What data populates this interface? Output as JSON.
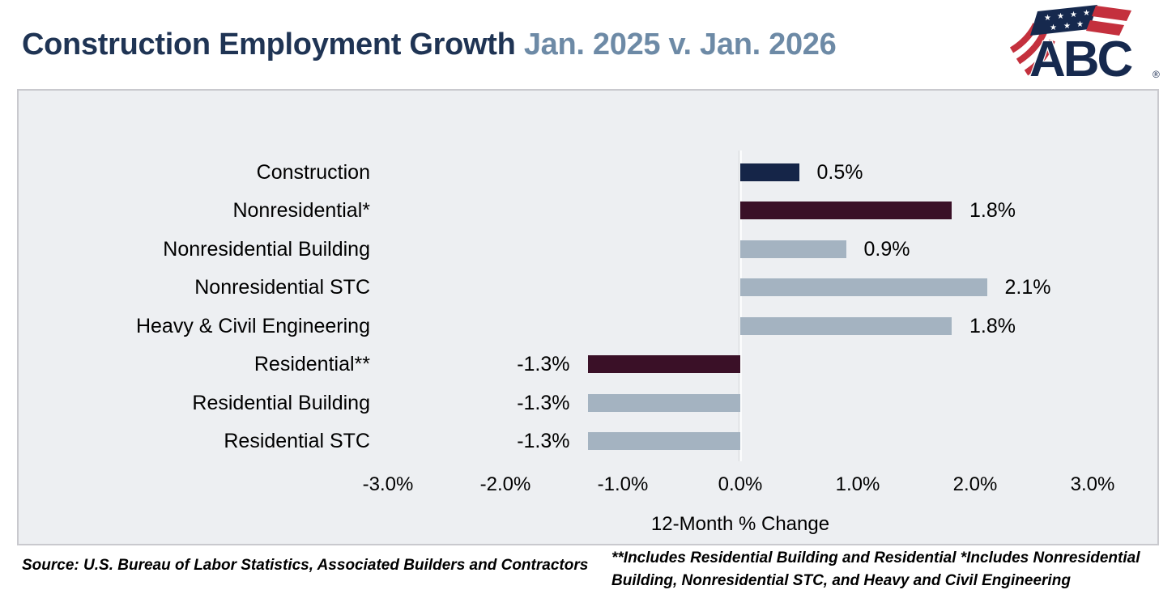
{
  "header": {
    "title_main": "Construction Employment Growth",
    "title_accent": "Jan. 2025 v. Jan. 2026",
    "logo": {
      "text": "ABC",
      "registered": "®",
      "navy": "#16294e",
      "red": "#c4303d"
    }
  },
  "chart_data": {
    "type": "bar",
    "orientation": "horizontal",
    "categories": [
      "Construction",
      "Nonresidential*",
      "Nonresidential Building",
      "Nonresidential STC",
      "Heavy & Civil Engineering",
      "Residential**",
      "Residential Building",
      "Residential STC"
    ],
    "values": [
      0.5,
      1.8,
      0.9,
      2.1,
      1.8,
      -1.3,
      -1.3,
      -1.3
    ],
    "value_labels": [
      "0.5%",
      "1.8%",
      "0.9%",
      "2.1%",
      "1.8%",
      "-1.3%",
      "-1.3%",
      "-1.3%"
    ],
    "bar_colors": [
      "#152548",
      "#3a1027",
      "#a4b3c1",
      "#a4b3c1",
      "#a4b3c1",
      "#3a1027",
      "#a4b3c1",
      "#a4b3c1"
    ],
    "xlabel": "12-Month % Change",
    "x_ticks": [
      "-3.0%",
      "-2.0%",
      "-1.0%",
      "0.0%",
      "1.0%",
      "2.0%",
      "3.0%"
    ],
    "x_tick_values": [
      -3,
      -2,
      -1,
      0,
      1,
      2,
      3
    ],
    "xlim": [
      -3,
      3
    ],
    "grid": false,
    "legend": "none",
    "plot_bg": "#edeff2",
    "zero_axis_line": true
  },
  "colors": {
    "title_navy": "#1f3454",
    "title_accent": "#6d8aa6",
    "bar_navy": "#152548",
    "bar_maroon": "#3a1027",
    "bar_gray_blue": "#a4b3c1",
    "panel_bg": "#edeff2",
    "panel_border": "#c9c9ce"
  },
  "footer": {
    "source": "Source: U.S. Bureau of Labor Statistics, Associated Builders and Contractors",
    "note": "**Includes Residential Building and Residential *Includes Nonresidential Building, Nonresidential STC, and Heavy and Civil Engineering"
  }
}
